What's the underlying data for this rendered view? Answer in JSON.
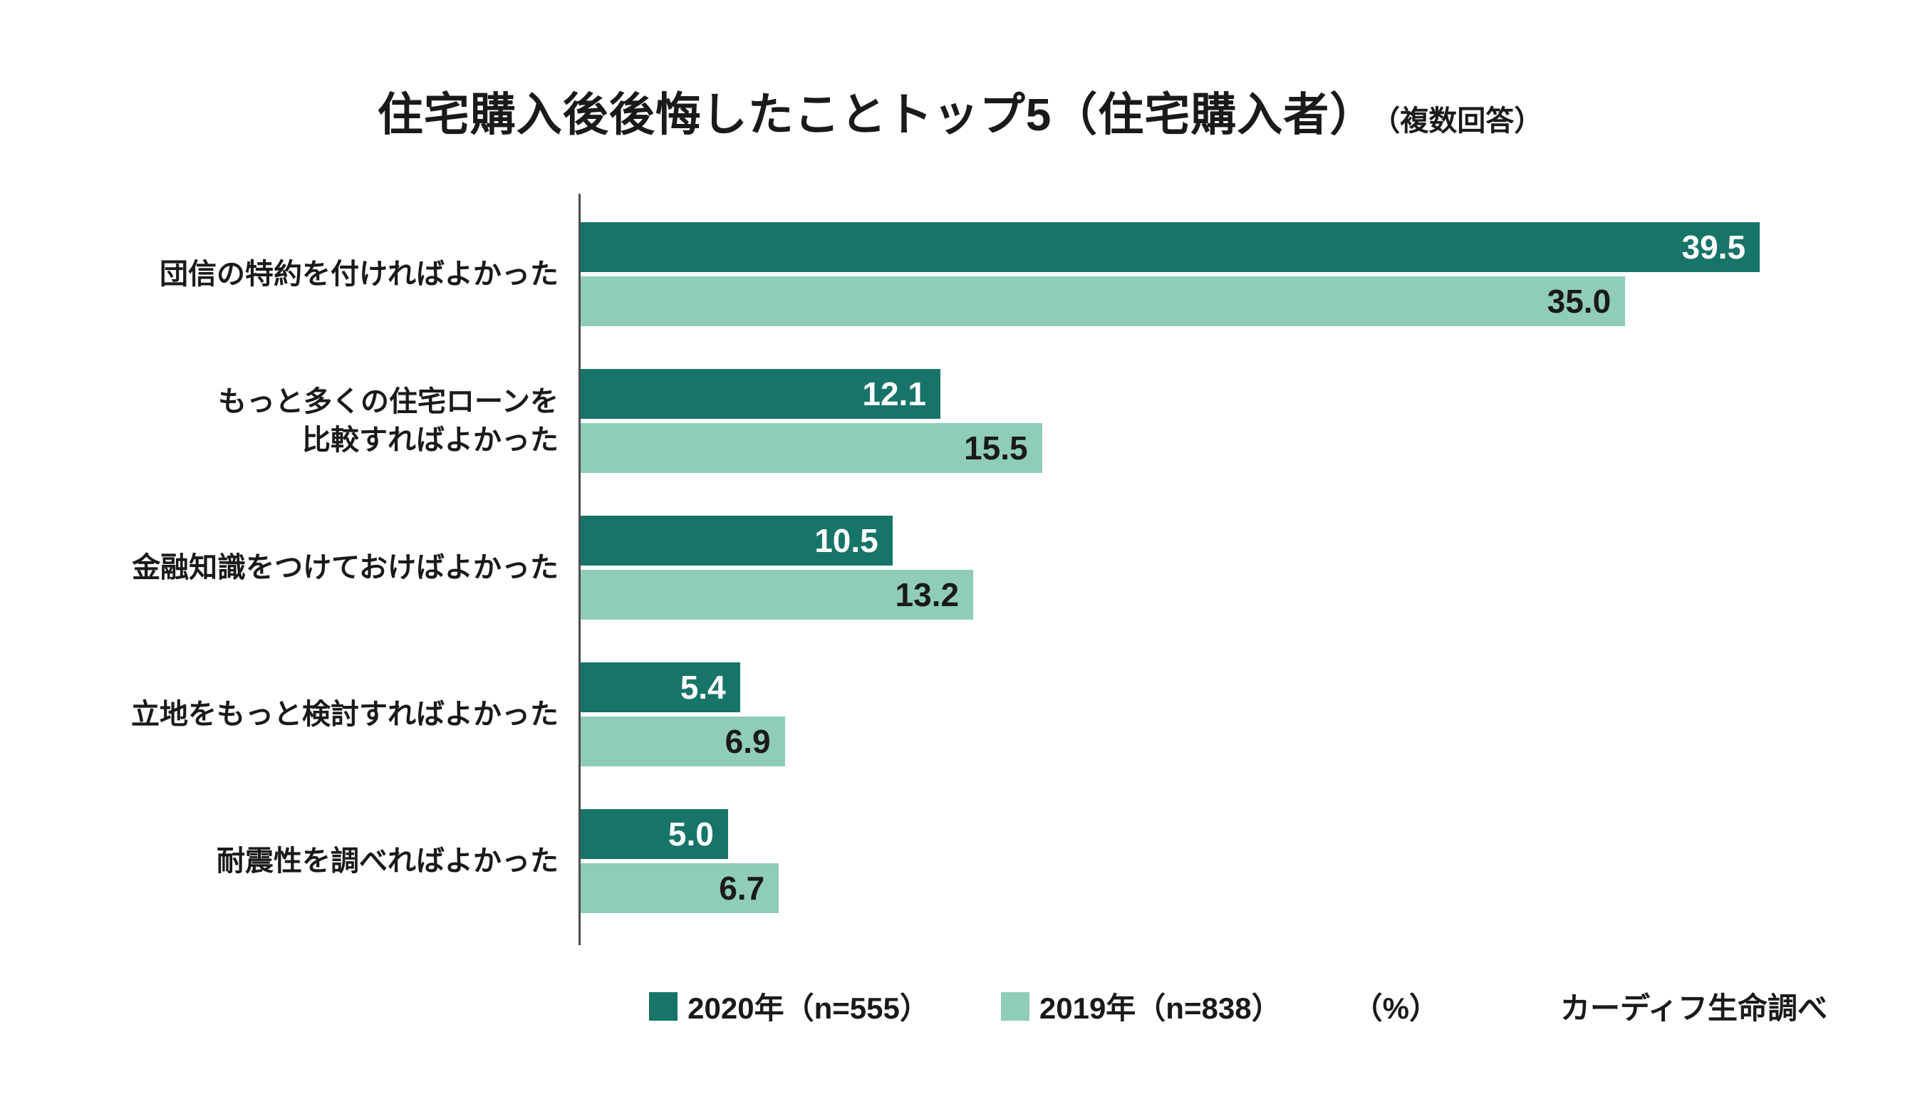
{
  "title": {
    "main": "住宅購入後後悔したことトップ5（住宅購入者）",
    "suffix": "（複数回答）"
  },
  "chart_data": {
    "type": "bar",
    "orientation": "horizontal",
    "title": "住宅購入後後悔したことトップ5（住宅購入者）（複数回答）",
    "categories": [
      "団信の特約を付ければよかった",
      "もっと多くの住宅ローンを\n比較すればよかった",
      "金融知識をつけておけばよかった",
      "立地をもっと検討すればよかった",
      "耐震性を調べればよかった"
    ],
    "series": [
      {
        "name": "2020年（n=555）",
        "color": "#177468",
        "value_text_color": "#ffffff",
        "values": [
          39.5,
          12.1,
          10.5,
          5.4,
          5.0
        ],
        "labels": [
          "39.5",
          "12.1",
          "10.5",
          "5.4",
          "5.0"
        ]
      },
      {
        "name": "2019年（n=838）",
        "color": "#8FCDB8",
        "value_text_color": "#1a1a1a",
        "values": [
          35.0,
          15.5,
          13.2,
          6.9,
          6.7
        ],
        "labels": [
          "35.0",
          "15.5",
          "13.2",
          "6.9",
          "6.7"
        ]
      }
    ],
    "xlim": [
      0,
      42
    ],
    "unit_label": "（%）",
    "source": "カーディフ生命調べ",
    "legend_position": "bottom",
    "grid": false
  }
}
